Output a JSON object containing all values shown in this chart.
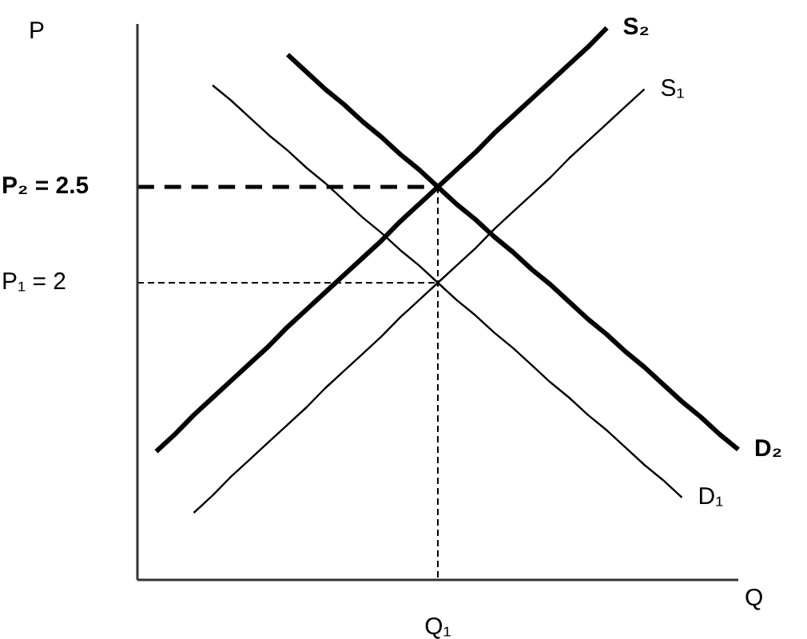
{
  "chart_data": {
    "type": "line",
    "xlabel": "Q",
    "ylabel": "P",
    "categories": [
      null,
      null,
      null,
      null,
      null,
      null,
      null,
      null,
      null,
      null,
      null,
      null,
      null,
      null,
      null,
      null,
      "Q₁",
      null,
      null,
      null,
      null,
      null,
      null,
      null,
      null,
      null,
      null,
      null,
      null,
      null,
      null,
      null,
      null
    ],
    "ylim": [
      0.45,
      3.35
    ],
    "yticks": [
      {
        "value": 2.5,
        "label": "P₂ = 2.5"
      },
      {
        "value": 2,
        "label": "P₁ = 2"
      }
    ],
    "grid": false,
    "legend": false,
    "marker": "none",
    "series": [
      {
        "name": "S₂",
        "color": "#000000",
        "line_style": "solid",
        "values": [
          null,
          1.12,
          1.21,
          1.31,
          1.4,
          1.49,
          1.58,
          1.67,
          1.77,
          1.86,
          1.95,
          2.04,
          2.13,
          2.22,
          2.32,
          2.41,
          2.5,
          2.59,
          2.68,
          2.78,
          2.87,
          2.96,
          3.05,
          3.14,
          3.23,
          3.33,
          null,
          null,
          null,
          null,
          null,
          null,
          null
        ]
      },
      {
        "name": "S₁",
        "color": "#000000",
        "line_style": "solid",
        "values": [
          null,
          null,
          null,
          0.8,
          0.89,
          0.99,
          1.08,
          1.17,
          1.26,
          1.35,
          1.45,
          1.54,
          1.63,
          1.72,
          1.82,
          1.91,
          2,
          2.09,
          2.18,
          2.28,
          2.37,
          2.46,
          2.55,
          2.65,
          2.74,
          2.83,
          2.92,
          3.01,
          null,
          null,
          null,
          null,
          null
        ]
      },
      {
        "name": "D₂",
        "color": "#000000",
        "line_style": "solid",
        "values": [
          null,
          null,
          null,
          null,
          null,
          null,
          null,
          null,
          3.19,
          3.1,
          3.01,
          2.93,
          2.84,
          2.76,
          2.67,
          2.59,
          2.5,
          2.41,
          2.33,
          2.24,
          2.16,
          2.07,
          1.99,
          1.9,
          1.81,
          1.73,
          1.64,
          1.56,
          1.47,
          1.38,
          1.3,
          1.21,
          1.13
        ]
      },
      {
        "name": "D₁",
        "color": "#000000",
        "line_style": "solid",
        "values": [
          null,
          null,
          null,
          null,
          3.03,
          2.95,
          2.86,
          2.77,
          2.69,
          2.6,
          2.52,
          2.43,
          2.34,
          2.26,
          2.17,
          2.09,
          2,
          1.91,
          1.83,
          1.74,
          1.66,
          1.57,
          1.48,
          1.4,
          1.31,
          1.23,
          1.14,
          1.05,
          0.97,
          0.88,
          null,
          null,
          null
        ]
      },
      {
        "color": "#000000",
        "line_style": "dashed",
        "values": [
          2.5,
          2.5,
          2.5,
          2.5,
          2.5,
          2.5,
          2.5,
          2.5,
          2.5,
          2.5,
          2.5,
          2.5,
          2.5,
          2.5,
          2.5,
          2.5,
          2.5,
          null,
          null,
          null,
          null,
          null,
          null,
          null,
          null,
          null,
          null,
          null,
          null,
          null,
          null,
          null,
          null
        ]
      },
      {
        "color": "#000000",
        "line_style": "dashed",
        "values": [
          2,
          2,
          2,
          2,
          2,
          2,
          2,
          2,
          2,
          2,
          2,
          2,
          2,
          2,
          2,
          2,
          2,
          null,
          null,
          null,
          null,
          null,
          null,
          null,
          null,
          null,
          null,
          null,
          null,
          null,
          null,
          null,
          null
        ]
      },
      {
        "color": "#000000",
        "line_style": "dashed",
        "x": [
          "Q₁",
          "Q₁"
        ],
        "values": [
          2.5,
          0.45
        ]
      }
    ]
  }
}
